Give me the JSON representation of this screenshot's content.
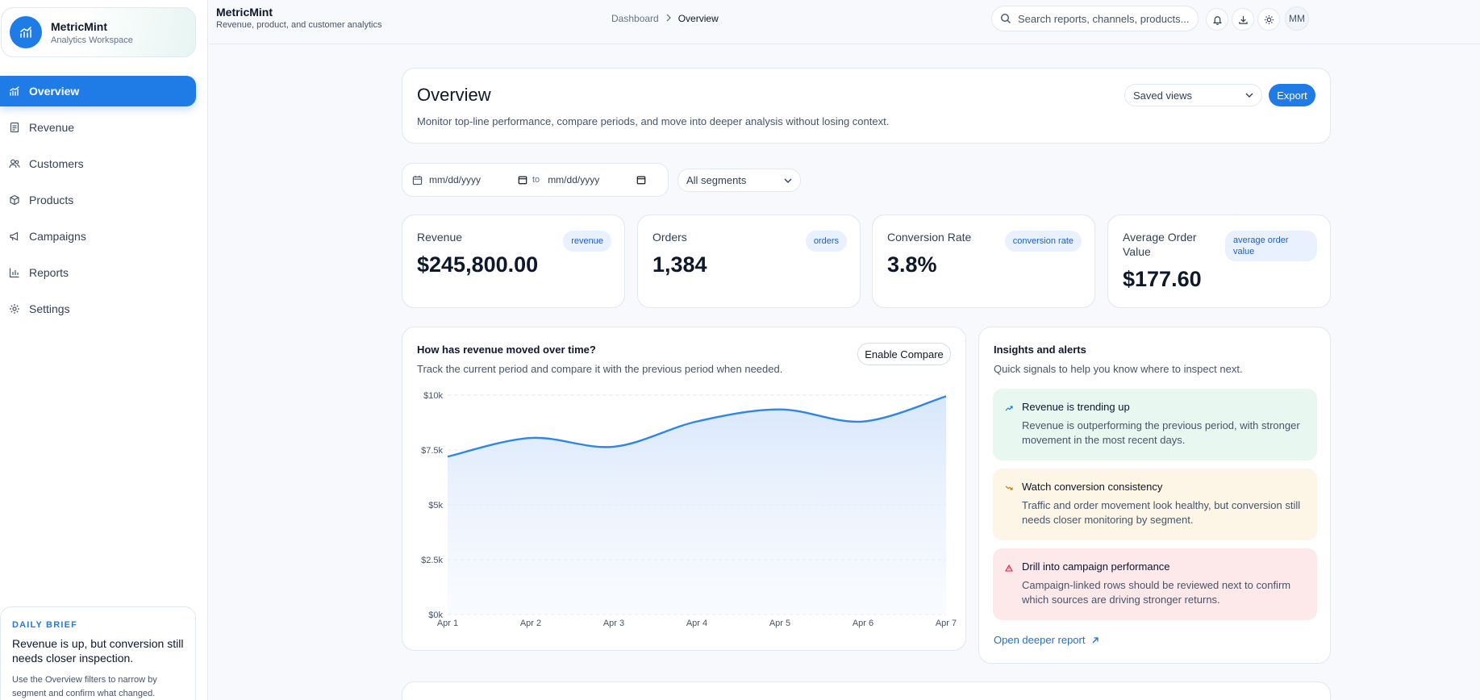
{
  "brand": {
    "name": "MetricMint",
    "subtitle": "Analytics Workspace"
  },
  "nav": [
    {
      "label": "Overview",
      "icon": "chart-icon",
      "active": true
    },
    {
      "label": "Revenue",
      "icon": "receipt-icon"
    },
    {
      "label": "Customers",
      "icon": "users-icon"
    },
    {
      "label": "Products",
      "icon": "box-icon"
    },
    {
      "label": "Campaigns",
      "icon": "megaphone-icon"
    },
    {
      "label": "Reports",
      "icon": "bar-chart-icon"
    },
    {
      "label": "Settings",
      "icon": "gear-icon"
    }
  ],
  "brief": {
    "tag": "DAILY BRIEF",
    "title": "Revenue is up, but conversion still needs closer inspection.",
    "text": "Use the Overview filters to narrow by segment and confirm what changed."
  },
  "header": {
    "title": "MetricMint",
    "subtitle": "Revenue, product, and customer analytics",
    "breadcrumb": [
      "Dashboard",
      "Overview"
    ],
    "search_placeholder": "Search reports, channels, products...",
    "avatar_initials": "MM"
  },
  "overview": {
    "title": "Overview",
    "description": "Monitor top-line performance, compare periods, and move into deeper analysis without losing context.",
    "saved_views_label": "Saved views",
    "export_label": "Export"
  },
  "filters": {
    "date_from": "mm/dd/yyyy",
    "date_to": "mm/dd/yyyy",
    "to_label": "to",
    "segment": "All segments"
  },
  "kpis": [
    {
      "label": "Revenue",
      "value": "$245,800.00",
      "badge": "revenue"
    },
    {
      "label": "Orders",
      "value": "1,384",
      "badge": "orders"
    },
    {
      "label": "Conversion Rate",
      "value": "3.8%",
      "badge": "conversion rate"
    },
    {
      "label": "Average Order Value",
      "value": "$177.60",
      "badge": "average order value"
    }
  ],
  "revenue_chart": {
    "title": "How has revenue moved over time?",
    "subtitle": "Track the current period and compare it with the previous period when needed.",
    "compare_label": "Enable Compare"
  },
  "chart_data": {
    "type": "area",
    "title": "How has revenue moved over time?",
    "categories": [
      "Apr 1",
      "Apr 2",
      "Apr 3",
      "Apr 4",
      "Apr 5",
      "Apr 6",
      "Apr 7"
    ],
    "series": [
      {
        "values": [
          7200,
          8050,
          7650,
          8800,
          9350,
          8800,
          9950
        ]
      }
    ],
    "y_ticks": [
      "$0k",
      "$2.5k",
      "$5k",
      "$7.5k",
      "$10k"
    ],
    "ylim": [
      0,
      10000
    ],
    "grid": true,
    "line_color": "#2f86e8"
  },
  "insights": {
    "title": "Insights and alerts",
    "subtitle": "Quick signals to help you know where to inspect next.",
    "alerts": [
      {
        "title": "Revenue is trending up",
        "text": "Revenue is outperforming the previous period, with stronger movement in the most recent days.",
        "icon": "trend-up-icon"
      },
      {
        "title": "Watch conversion consistency",
        "text": "Traffic and order movement look healthy, but conversion still needs closer monitoring by segment.",
        "icon": "trend-down-icon"
      },
      {
        "title": "Drill into campaign performance",
        "text": "Campaign-linked rows should be reviewed next to confirm which sources are driving stronger returns.",
        "icon": "warning-icon"
      }
    ],
    "deeper_link": "Open deeper report"
  }
}
